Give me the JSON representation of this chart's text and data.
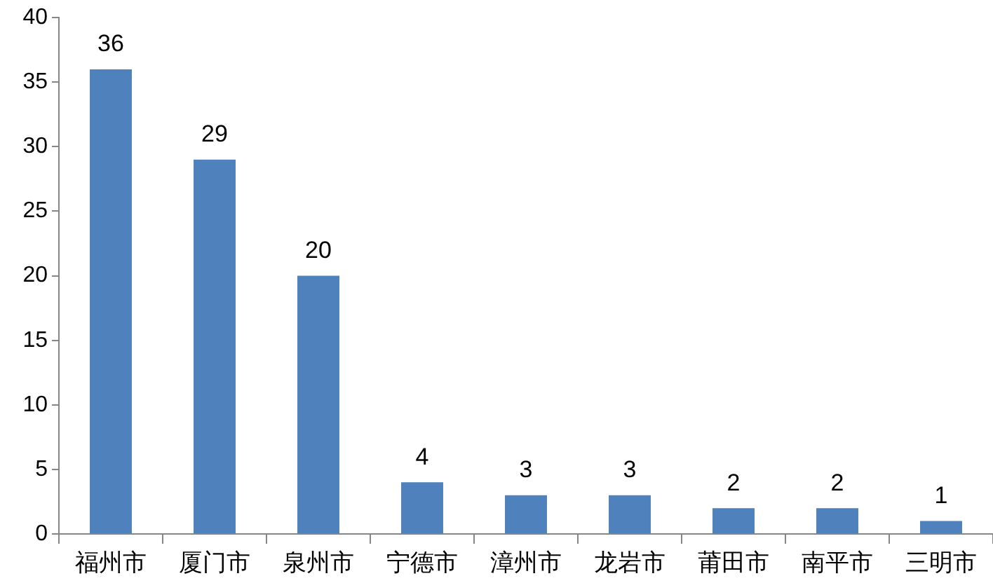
{
  "chart_data": {
    "type": "bar",
    "categories": [
      "福州市",
      "厦门市",
      "泉州市",
      "宁德市",
      "漳州市",
      "龙岩市",
      "莆田市",
      "南平市",
      "三明市"
    ],
    "values": [
      36,
      29,
      20,
      4,
      3,
      3,
      2,
      2,
      1
    ],
    "color": "#4f81bd",
    "ylim": [
      0,
      40
    ],
    "yticks": [
      0,
      5,
      10,
      15,
      20,
      25,
      30,
      35,
      40
    ],
    "grid": false,
    "legend": false,
    "data_labels": true
  }
}
